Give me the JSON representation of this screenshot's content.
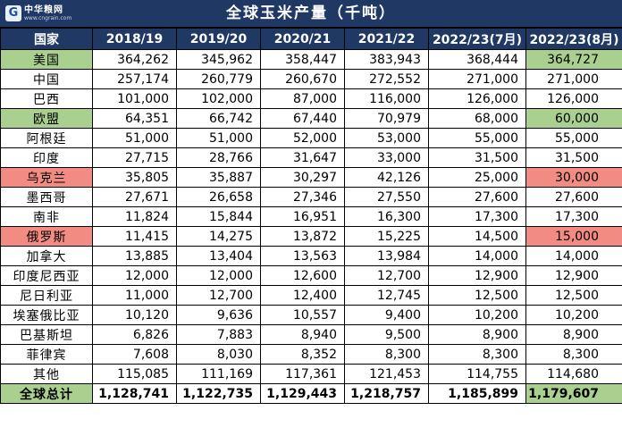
{
  "header": {
    "logo_text": "中华粮网",
    "logo_url": "www.cngrain.com",
    "title": "全球玉米产量（千吨）"
  },
  "table": {
    "columns": [
      "国家",
      "2018/19",
      "2019/20",
      "2020/21",
      "2021/22",
      "2022/23(7月)",
      "2022/23(8月)"
    ],
    "rows": [
      {
        "country": "美国",
        "values": [
          "364,262",
          "345,962",
          "358,447",
          "383,943",
          "368,444",
          "364,727"
        ],
        "country_hl": "green",
        "last_hl": "green"
      },
      {
        "country": "中国",
        "values": [
          "257,174",
          "260,779",
          "260,670",
          "272,552",
          "271,000",
          "271,000"
        ],
        "country_hl": "",
        "last_hl": ""
      },
      {
        "country": "巴西",
        "values": [
          "101,000",
          "102,000",
          "87,000",
          "116,000",
          "126,000",
          "126,000"
        ],
        "country_hl": "",
        "last_hl": ""
      },
      {
        "country": "欧盟",
        "values": [
          "64,351",
          "66,742",
          "67,440",
          "70,979",
          "68,000",
          "60,000"
        ],
        "country_hl": "green",
        "last_hl": "green"
      },
      {
        "country": "阿根廷",
        "values": [
          "51,000",
          "51,000",
          "52,000",
          "53,000",
          "55,000",
          "55,000"
        ],
        "country_hl": "",
        "last_hl": ""
      },
      {
        "country": "印度",
        "values": [
          "27,715",
          "28,766",
          "31,647",
          "33,000",
          "31,500",
          "31,500"
        ],
        "country_hl": "",
        "last_hl": ""
      },
      {
        "country": "乌克兰",
        "values": [
          "35,805",
          "35,887",
          "30,297",
          "42,126",
          "25,000",
          "30,000"
        ],
        "country_hl": "red",
        "last_hl": "red"
      },
      {
        "country": "墨西哥",
        "values": [
          "27,671",
          "26,658",
          "27,346",
          "27,550",
          "27,600",
          "27,600"
        ],
        "country_hl": "",
        "last_hl": ""
      },
      {
        "country": "南非",
        "values": [
          "11,824",
          "15,844",
          "16,951",
          "16,300",
          "17,300",
          "17,300"
        ],
        "country_hl": "",
        "last_hl": ""
      },
      {
        "country": "俄罗斯",
        "values": [
          "11,415",
          "14,275",
          "13,872",
          "15,225",
          "14,500",
          "15,000"
        ],
        "country_hl": "red",
        "last_hl": "red"
      },
      {
        "country": "加拿大",
        "values": [
          "13,885",
          "13,404",
          "13,563",
          "13,984",
          "14,000",
          "14,000"
        ],
        "country_hl": "",
        "last_hl": ""
      },
      {
        "country": "印度尼西亚",
        "values": [
          "12,000",
          "12,000",
          "12,600",
          "12,700",
          "12,900",
          "12,900"
        ],
        "country_hl": "",
        "last_hl": ""
      },
      {
        "country": "尼日利亚",
        "values": [
          "11,000",
          "12,700",
          "12,400",
          "12,745",
          "12,500",
          "12,500"
        ],
        "country_hl": "",
        "last_hl": ""
      },
      {
        "country": "埃塞俄比亚",
        "values": [
          "10,120",
          "9,636",
          "10,557",
          "9,400",
          "10,200",
          "10,200"
        ],
        "country_hl": "",
        "last_hl": ""
      },
      {
        "country": "巴基斯坦",
        "values": [
          "6,826",
          "7,883",
          "8,940",
          "9,500",
          "8,900",
          "8,900"
        ],
        "country_hl": "",
        "last_hl": ""
      },
      {
        "country": "菲律宾",
        "values": [
          "7,608",
          "8,030",
          "8,352",
          "8,300",
          "8,300",
          "8,300"
        ],
        "country_hl": "",
        "last_hl": ""
      },
      {
        "country": "其他",
        "values": [
          "115,085",
          "111,169",
          "117,361",
          "121,453",
          "114,755",
          "114,680"
        ],
        "country_hl": "",
        "last_hl": ""
      },
      {
        "country": "全球总计",
        "values": [
          "1,128,741",
          "1,122,735",
          "1,129,443",
          "1,218,757",
          "1,185,899",
          "1,179,607"
        ],
        "country_hl": "green",
        "last_hl": "green",
        "total": true
      }
    ]
  },
  "colors": {
    "header_bg": "#1f3864",
    "highlight_green": "#a9d08e",
    "highlight_red": "#f28b82"
  }
}
